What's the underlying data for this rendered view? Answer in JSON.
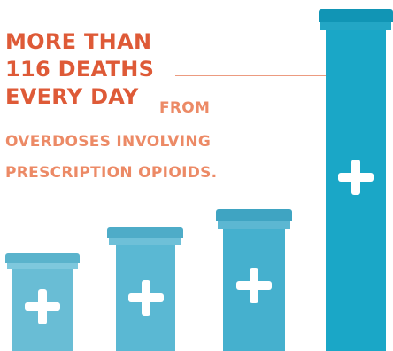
{
  "headline": {
    "line1": "MORE THAN",
    "line2": "116 DEATHS",
    "line3": "EVERY DAY"
  },
  "subtext": {
    "line1": "FROM",
    "line2": "OVERDOSES INVOLVING",
    "line3": "PRESCRIPTION OPIOIDS."
  },
  "bottles": [
    {
      "name": "bottle-1",
      "icon": "plus-icon"
    },
    {
      "name": "bottle-2",
      "icon": "plus-icon"
    },
    {
      "name": "bottle-3",
      "icon": "plus-icon"
    },
    {
      "name": "bottle-4",
      "icon": "plus-icon"
    }
  ],
  "colors": {
    "headline": "#de5a37",
    "subtext": "#ec8a66",
    "bottle_light": "#69bdd5",
    "bottle_mid": "#52b2d0",
    "bottle_dark": "#1aa7c7",
    "cap_light": "#5ab3cc",
    "cap_dark": "#1195b5"
  }
}
